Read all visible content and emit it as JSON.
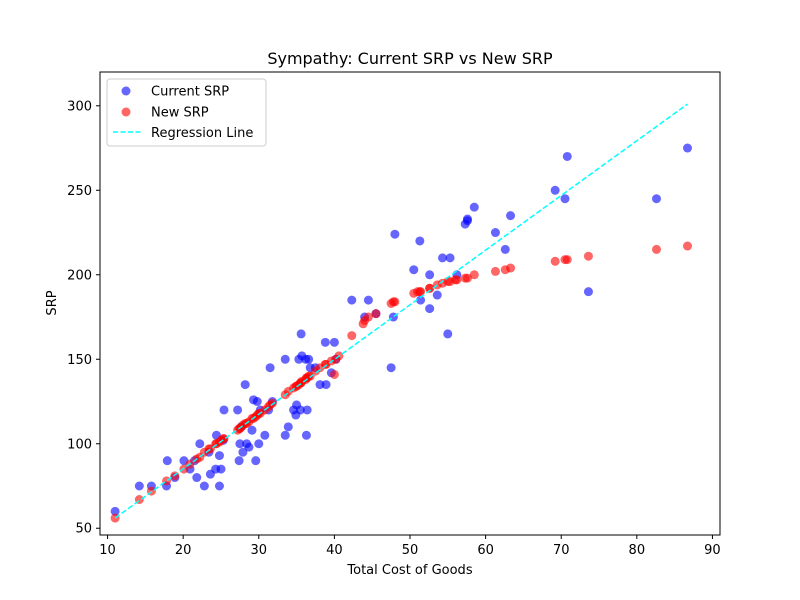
{
  "chart_data": {
    "type": "scatter",
    "title": "Sympathy: Current SRP vs New SRP",
    "xlabel": "Total Cost of Goods",
    "ylabel": "SRP",
    "xlim": [
      9,
      91
    ],
    "ylim": [
      46,
      320
    ],
    "xticks": [
      10,
      20,
      30,
      40,
      50,
      60,
      70,
      80,
      90
    ],
    "yticks": [
      50,
      100,
      150,
      200,
      250,
      300
    ],
    "grid": false,
    "legend_position": "top-left",
    "colors": {
      "current": "#0000ff",
      "new": "#ff0000",
      "regression": "#00ffff"
    },
    "series": [
      {
        "name": "Current SRP",
        "style": "scatter",
        "color": "#0000ff",
        "points": [
          [
            11,
            60
          ],
          [
            14.2,
            75
          ],
          [
            15.8,
            75
          ],
          [
            17.8,
            75
          ],
          [
            17.9,
            90
          ],
          [
            18.9,
            80
          ],
          [
            20.1,
            90
          ],
          [
            20.9,
            85
          ],
          [
            21.5,
            90
          ],
          [
            21.8,
            80
          ],
          [
            22.2,
            100
          ],
          [
            22.8,
            75
          ],
          [
            23.4,
            95
          ],
          [
            23.6,
            82
          ],
          [
            24.3,
            85
          ],
          [
            24.4,
            105
          ],
          [
            24.8,
            75
          ],
          [
            25,
            85
          ],
          [
            24.8,
            93
          ],
          [
            25.4,
            120
          ],
          [
            25.3,
            102
          ],
          [
            27.2,
            120
          ],
          [
            27.4,
            90
          ],
          [
            27.5,
            100
          ],
          [
            27.7,
            110
          ],
          [
            27.9,
            95
          ],
          [
            28.2,
            135
          ],
          [
            28.4,
            100
          ],
          [
            28.7,
            98
          ],
          [
            29.1,
            108
          ],
          [
            29.3,
            126
          ],
          [
            29.6,
            90
          ],
          [
            29.8,
            125
          ],
          [
            30,
            100
          ],
          [
            30.2,
            120
          ],
          [
            30.8,
            105
          ],
          [
            31.3,
            120
          ],
          [
            31.5,
            145
          ],
          [
            31.8,
            125
          ],
          [
            33.5,
            150
          ],
          [
            33.5,
            105
          ],
          [
            33.9,
            110
          ],
          [
            34.6,
            120
          ],
          [
            34.9,
            117
          ],
          [
            35,
            123
          ],
          [
            35.3,
            150
          ],
          [
            35.5,
            120
          ],
          [
            35.6,
            165
          ],
          [
            35.7,
            152
          ],
          [
            36.2,
            150
          ],
          [
            36.3,
            105
          ],
          [
            36.4,
            120
          ],
          [
            36.8,
            145
          ],
          [
            36.6,
            150
          ],
          [
            37.5,
            145
          ],
          [
            38.1,
            135
          ],
          [
            38.8,
            160
          ],
          [
            38.9,
            135
          ],
          [
            39.6,
            142
          ],
          [
            40,
            160
          ],
          [
            40.2,
            150
          ],
          [
            42.3,
            185
          ],
          [
            44,
            175
          ],
          [
            44.5,
            185
          ],
          [
            45.5,
            177
          ],
          [
            47.5,
            145
          ],
          [
            47.8,
            175
          ],
          [
            48,
            224
          ],
          [
            50.5,
            203
          ],
          [
            51.3,
            220
          ],
          [
            51.4,
            185
          ],
          [
            52.6,
            200
          ],
          [
            52.6,
            180
          ],
          [
            53.6,
            188
          ],
          [
            54.3,
            210
          ],
          [
            55,
            165
          ],
          [
            55.3,
            210
          ],
          [
            56.2,
            200
          ],
          [
            57.3,
            230
          ],
          [
            57.6,
            232
          ],
          [
            57.6,
            233
          ],
          [
            58.5,
            240
          ],
          [
            61.3,
            225
          ],
          [
            62.6,
            215
          ],
          [
            63.3,
            235
          ],
          [
            69.2,
            250
          ],
          [
            70.5,
            245
          ],
          [
            70.8,
            270
          ],
          [
            73.6,
            190
          ],
          [
            82.6,
            245
          ],
          [
            86.7,
            275
          ]
        ]
      },
      {
        "name": "New SRP",
        "style": "scatter",
        "color": "#ff0000",
        "points": [
          [
            11,
            56
          ],
          [
            14.2,
            67
          ],
          [
            15.8,
            72
          ],
          [
            17.8,
            78
          ],
          [
            18.9,
            81
          ],
          [
            20.1,
            85
          ],
          [
            20.9,
            88
          ],
          [
            21.8,
            91
          ],
          [
            22.2,
            92
          ],
          [
            22.8,
            95
          ],
          [
            23.4,
            97
          ],
          [
            23.6,
            97
          ],
          [
            24.3,
            100
          ],
          [
            24.4,
            100
          ],
          [
            24.8,
            101
          ],
          [
            25,
            102
          ],
          [
            25.3,
            103
          ],
          [
            25.4,
            103
          ],
          [
            27.2,
            108
          ],
          [
            27.4,
            109
          ],
          [
            27.5,
            109
          ],
          [
            27.7,
            110
          ],
          [
            27.9,
            111
          ],
          [
            28.2,
            112
          ],
          [
            28.4,
            112
          ],
          [
            28.7,
            113
          ],
          [
            29.1,
            115
          ],
          [
            29.3,
            115
          ],
          [
            29.6,
            116
          ],
          [
            29.8,
            117
          ],
          [
            30,
            118
          ],
          [
            30.2,
            118
          ],
          [
            30.8,
            120
          ],
          [
            31.3,
            122
          ],
          [
            31.5,
            123
          ],
          [
            31.8,
            124
          ],
          [
            33.5,
            129
          ],
          [
            33.9,
            131
          ],
          [
            34.6,
            133
          ],
          [
            34.9,
            134
          ],
          [
            35,
            134
          ],
          [
            35.3,
            135
          ],
          [
            35.5,
            136
          ],
          [
            35.6,
            136
          ],
          [
            35.7,
            137
          ],
          [
            36.2,
            138
          ],
          [
            36.3,
            139
          ],
          [
            36.4,
            139
          ],
          [
            36.6,
            140
          ],
          [
            36.8,
            140
          ],
          [
            37.5,
            143
          ],
          [
            38.1,
            145
          ],
          [
            38.8,
            147
          ],
          [
            38.9,
            147
          ],
          [
            39.6,
            149
          ],
          [
            40,
            141
          ],
          [
            40.2,
            150
          ],
          [
            40.6,
            152
          ],
          [
            42.3,
            164
          ],
          [
            43.8,
            171
          ],
          [
            44,
            173
          ],
          [
            44.5,
            175
          ],
          [
            45.5,
            177
          ],
          [
            47.5,
            183
          ],
          [
            47.8,
            184
          ],
          [
            48,
            184
          ],
          [
            50.5,
            189
          ],
          [
            51,
            190
          ],
          [
            51.3,
            190
          ],
          [
            51.4,
            190
          ],
          [
            52.6,
            192
          ],
          [
            52.6,
            192
          ],
          [
            53.6,
            194
          ],
          [
            54.3,
            195
          ],
          [
            55,
            196
          ],
          [
            55.3,
            196
          ],
          [
            56,
            197
          ],
          [
            56.2,
            197
          ],
          [
            57.3,
            198
          ],
          [
            57.6,
            198
          ],
          [
            58.5,
            200
          ],
          [
            61.3,
            202
          ],
          [
            62.6,
            203
          ],
          [
            63.3,
            204
          ],
          [
            69.2,
            208
          ],
          [
            70.5,
            209
          ],
          [
            70.8,
            209
          ],
          [
            73.6,
            211
          ],
          [
            82.6,
            215
          ],
          [
            86.7,
            217
          ]
        ]
      },
      {
        "name": "Regression Line",
        "style": "dashed-line",
        "color": "#00ffff",
        "points": [
          [
            11,
            56
          ],
          [
            86.7,
            301
          ]
        ]
      }
    ]
  }
}
